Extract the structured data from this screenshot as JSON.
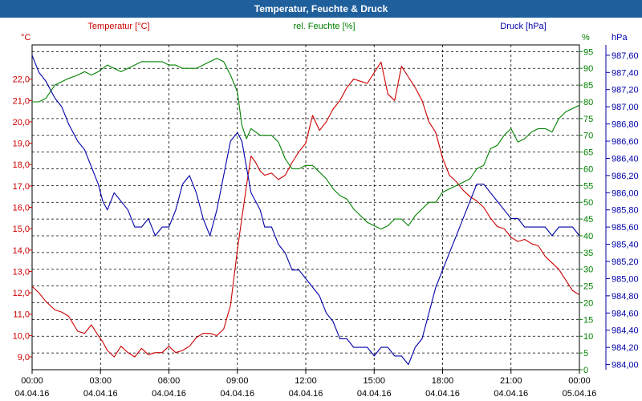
{
  "window": {
    "title": "Temperatur, Feuchte & Druck"
  },
  "chart_data": {
    "type": "line",
    "title": "Temperatur, Feuchte & Druck",
    "colors": {
      "temperature": "#cc0000",
      "humidity": "#008000",
      "pressure": "#0000aa",
      "title_bar": "#1f5f9c"
    },
    "grid": true,
    "x_ticks": [
      {
        "time": "00:00",
        "date": "04.04.16"
      },
      {
        "time": "03:00",
        "date": "04.04.16"
      },
      {
        "time": "06:00",
        "date": "04.04.16"
      },
      {
        "time": "09:00",
        "date": "04.04.16"
      },
      {
        "time": "12:00",
        "date": "04.04.16"
      },
      {
        "time": "15:00",
        "date": "04.04.16"
      },
      {
        "time": "18:00",
        "date": "04.04.16"
      },
      {
        "time": "21:00",
        "date": "04.04.16"
      },
      {
        "time": "00:00",
        "date": "05.04.16"
      }
    ],
    "x_range_hours": [
      0,
      24
    ],
    "axes": {
      "temperature": {
        "unit": "°C",
        "series_label": "Temperatur [°C]",
        "range": [
          8.4,
          23.6
        ],
        "ticks": [
          "9,0",
          "10,0",
          "11,0",
          "12,0",
          "13,0",
          "14,0",
          "15,0",
          "16,0",
          "17,0",
          "18,0",
          "19,0",
          "20,0",
          "21,0",
          "22,0"
        ]
      },
      "humidity": {
        "unit": "%",
        "series_label": "rel. Feuchte [%]",
        "range": [
          0,
          97
        ],
        "ticks": [
          "0",
          "5",
          "10",
          "15",
          "20",
          "25",
          "30",
          "35",
          "40",
          "45",
          "50",
          "55",
          "60",
          "65",
          "70",
          "75",
          "80",
          "85",
          "90",
          "95"
        ]
      },
      "pressure": {
        "unit": "hPa",
        "series_label": "Druck [hPa]",
        "range": [
          983.94,
          987.72
        ],
        "ticks": [
          "984,00",
          "984,20",
          "984,40",
          "984,60",
          "984,80",
          "985,00",
          "985,20",
          "985,40",
          "985,60",
          "985,80",
          "986,00",
          "986,20",
          "986,40",
          "986,60",
          "986,80",
          "987,00",
          "987,20",
          "987,40",
          "987,60"
        ]
      }
    },
    "series": [
      {
        "name": "Temperatur [°C]",
        "axis": "temperature",
        "x": [
          0,
          0.3,
          0.6,
          1,
          1.3,
          1.6,
          2,
          2.3,
          2.6,
          2.9,
          3.1,
          3.3,
          3.6,
          3.9,
          4.2,
          4.5,
          4.8,
          5.1,
          5.4,
          5.7,
          6,
          6.3,
          6.6,
          6.9,
          7.2,
          7.5,
          7.8,
          8.1,
          8.4,
          8.7,
          9,
          9.2,
          9.4,
          9.6,
          9.8,
          10,
          10.2,
          10.5,
          10.8,
          11.1,
          11.4,
          11.7,
          12,
          12.3,
          12.6,
          12.9,
          13.2,
          13.5,
          13.8,
          14.1,
          14.4,
          14.7,
          15,
          15.3,
          15.6,
          15.9,
          16.2,
          16.5,
          16.8,
          17.1,
          17.4,
          17.7,
          18,
          18.3,
          18.6,
          18.9,
          19.2,
          19.5,
          19.8,
          20.1,
          20.4,
          20.7,
          21,
          21.3,
          21.6,
          21.9,
          22.2,
          22.5,
          22.8,
          23.1,
          23.4,
          23.7,
          24
        ],
        "y": [
          12.3,
          12.0,
          11.6,
          11.2,
          11.1,
          10.9,
          10.2,
          10.1,
          10.5,
          10.0,
          9.7,
          9.3,
          9.0,
          9.5,
          9.2,
          9.0,
          9.4,
          9.1,
          9.2,
          9.2,
          9.5,
          9.2,
          9.3,
          9.5,
          9.9,
          10.1,
          10.1,
          10.0,
          10.3,
          11.4,
          14.0,
          15.5,
          17.0,
          18.4,
          18.1,
          17.7,
          17.5,
          17.6,
          17.3,
          17.5,
          18.1,
          18.6,
          19.0,
          20.3,
          19.6,
          20.0,
          20.6,
          21.0,
          21.6,
          22.0,
          21.9,
          21.8,
          22.3,
          22.8,
          21.3,
          21.0,
          22.6,
          22.1,
          21.6,
          21.0,
          20.0,
          19.5,
          18.3,
          17.5,
          17.2,
          16.8,
          16.5,
          16.3,
          16.0,
          15.5,
          15.1,
          15.0,
          14.6,
          14.4,
          14.5,
          14.3,
          14.2,
          13.7,
          13.4,
          13.1,
          12.6,
          12.1,
          11.9
        ]
      },
      {
        "name": "rel. Feuchte [%]",
        "axis": "humidity",
        "x": [
          0,
          0.3,
          0.6,
          1,
          1.3,
          1.6,
          2,
          2.3,
          2.6,
          2.9,
          3.1,
          3.3,
          3.6,
          3.9,
          4.2,
          4.5,
          4.8,
          5.1,
          5.4,
          5.7,
          6,
          6.3,
          6.6,
          6.9,
          7.2,
          7.5,
          7.8,
          8.1,
          8.4,
          8.7,
          9,
          9.2,
          9.4,
          9.6,
          9.8,
          10,
          10.2,
          10.5,
          10.8,
          11.1,
          11.4,
          11.7,
          12,
          12.3,
          12.6,
          12.9,
          13.2,
          13.5,
          13.8,
          14.1,
          14.4,
          14.7,
          15,
          15.3,
          15.6,
          15.9,
          16.2,
          16.5,
          16.8,
          17.1,
          17.4,
          17.7,
          18,
          18.3,
          18.6,
          18.9,
          19.2,
          19.5,
          19.8,
          20.1,
          20.4,
          20.7,
          21,
          21.3,
          21.6,
          21.9,
          22.2,
          22.5,
          22.8,
          23.1,
          23.4,
          23.7,
          24
        ],
        "y": [
          80,
          80,
          81,
          85,
          86,
          87,
          88,
          89,
          88,
          89,
          90,
          91,
          90,
          89,
          90,
          91,
          92,
          92,
          92,
          92,
          91,
          91,
          90,
          90,
          90,
          91,
          92,
          93,
          92,
          88,
          83,
          73,
          69,
          72,
          71,
          70,
          70,
          70,
          68,
          63,
          60,
          60,
          61,
          61,
          59,
          57,
          54,
          52,
          51,
          48,
          46,
          44,
          43,
          42,
          43,
          45,
          45,
          43,
          46,
          48,
          50,
          50,
          53,
          54,
          55,
          56,
          57,
          60,
          61,
          66,
          67,
          70,
          72,
          68,
          69,
          71,
          72,
          72,
          71,
          75,
          77,
          78,
          79
        ]
      },
      {
        "name": "Druck [hPa]",
        "axis": "pressure",
        "x": [
          0,
          0.3,
          0.6,
          1,
          1.3,
          1.6,
          2,
          2.3,
          2.6,
          2.9,
          3.1,
          3.3,
          3.6,
          3.9,
          4.2,
          4.5,
          4.8,
          5.1,
          5.4,
          5.7,
          6,
          6.3,
          6.6,
          6.9,
          7.2,
          7.5,
          7.8,
          8.1,
          8.4,
          8.7,
          9,
          9.2,
          9.4,
          9.6,
          9.8,
          10,
          10.2,
          10.5,
          10.8,
          11.1,
          11.4,
          11.7,
          12,
          12.3,
          12.6,
          12.9,
          13.2,
          13.5,
          13.8,
          14.1,
          14.4,
          14.7,
          15,
          15.3,
          15.6,
          15.9,
          16.2,
          16.5,
          16.8,
          17.1,
          17.4,
          17.7,
          18,
          18.3,
          18.6,
          18.9,
          19.2,
          19.5,
          19.8,
          20.1,
          20.4,
          20.7,
          21,
          21.3,
          21.6,
          21.9,
          22.2,
          22.5,
          22.8,
          23.1,
          23.4,
          23.7,
          24
        ],
        "y": [
          987.6,
          987.4,
          987.3,
          987.1,
          987.0,
          986.8,
          986.6,
          986.5,
          986.3,
          986.1,
          985.9,
          985.8,
          986.0,
          985.9,
          985.8,
          985.6,
          985.6,
          985.7,
          985.5,
          985.6,
          985.6,
          985.8,
          986.1,
          986.2,
          986.0,
          985.7,
          985.5,
          985.8,
          986.2,
          986.6,
          986.7,
          986.6,
          986.3,
          986.0,
          985.9,
          985.8,
          985.6,
          985.6,
          985.4,
          985.3,
          985.1,
          985.1,
          985.0,
          984.9,
          984.8,
          984.6,
          984.5,
          984.3,
          984.3,
          984.2,
          984.2,
          984.2,
          984.1,
          984.2,
          984.2,
          984.1,
          984.1,
          984.0,
          984.2,
          984.3,
          984.6,
          984.9,
          985.1,
          985.3,
          985.5,
          985.7,
          985.9,
          986.1,
          986.1,
          986.0,
          985.9,
          985.8,
          985.7,
          985.7,
          985.6,
          985.6,
          985.6,
          985.6,
          985.5,
          985.6,
          985.6,
          985.6,
          985.5
        ]
      }
    ]
  }
}
